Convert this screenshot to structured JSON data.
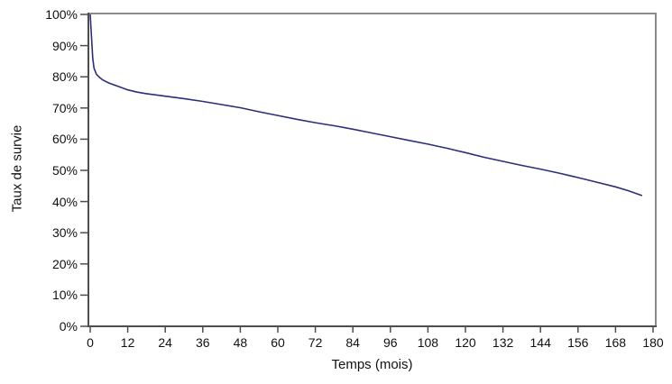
{
  "colors": {
    "background": "#ffffff",
    "axis": "#4d4d4d",
    "frame": "#8c8c8c",
    "curve": "#2d2d7d",
    "text": "#111111"
  },
  "chart_data": {
    "type": "line",
    "title": "",
    "xlabel": "Temps (mois)",
    "ylabel": "Taux de survie",
    "xlim": [
      0,
      180
    ],
    "ylim": [
      0,
      100
    ],
    "grid": false,
    "legend": "none",
    "x_tick_values": [
      0,
      12,
      24,
      36,
      48,
      60,
      72,
      84,
      96,
      108,
      120,
      132,
      144,
      156,
      168,
      180
    ],
    "x_tick_labels": [
      "0",
      "12",
      "24",
      "36",
      "48",
      "60",
      "72",
      "84",
      "96",
      "108",
      "120",
      "132",
      "144",
      "156",
      "168",
      "180"
    ],
    "y_tick_values": [
      0,
      10,
      20,
      30,
      40,
      50,
      60,
      70,
      80,
      90,
      100
    ],
    "y_tick_labels": [
      "0%",
      "10%",
      "20%",
      "30%",
      "40%",
      "50%",
      "60%",
      "70%",
      "80%",
      "90%",
      "100%"
    ],
    "series": [
      {
        "name": "Taux de survie",
        "color": "#2d2d7d",
        "points": [
          [
            0,
            100
          ],
          [
            0.4,
            93
          ],
          [
            0.8,
            86
          ],
          [
            1.2,
            82.8
          ],
          [
            2,
            80.8
          ],
          [
            3,
            79.8
          ],
          [
            4,
            79.0
          ],
          [
            6,
            78.0
          ],
          [
            9,
            76.9
          ],
          [
            12,
            75.8
          ],
          [
            15,
            75.1
          ],
          [
            18,
            74.6
          ],
          [
            21,
            74.2
          ],
          [
            24,
            73.8
          ],
          [
            30,
            73.0
          ],
          [
            36,
            72.1
          ],
          [
            42,
            71.1
          ],
          [
            48,
            70.1
          ],
          [
            54,
            68.8
          ],
          [
            60,
            67.6
          ],
          [
            66,
            66.4
          ],
          [
            72,
            65.3
          ],
          [
            78,
            64.3
          ],
          [
            84,
            63.2
          ],
          [
            90,
            62.0
          ],
          [
            96,
            60.8
          ],
          [
            102,
            59.6
          ],
          [
            108,
            58.4
          ],
          [
            114,
            57.1
          ],
          [
            120,
            55.7
          ],
          [
            126,
            54.2
          ],
          [
            132,
            52.9
          ],
          [
            138,
            51.6
          ],
          [
            144,
            50.4
          ],
          [
            150,
            49.1
          ],
          [
            156,
            47.7
          ],
          [
            162,
            46.2
          ],
          [
            168,
            44.7
          ],
          [
            172,
            43.5
          ],
          [
            176.5,
            41.9
          ]
        ]
      }
    ]
  }
}
